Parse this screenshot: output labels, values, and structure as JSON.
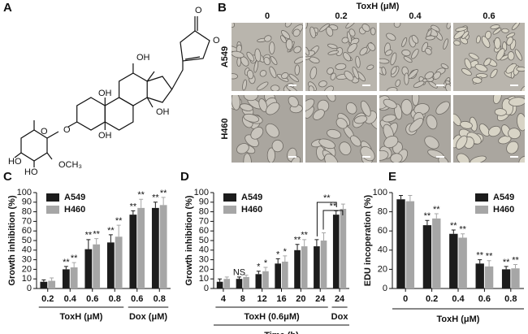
{
  "panel_labels": [
    "A",
    "B",
    "C",
    "D",
    "E"
  ],
  "structure": {
    "labels": [
      "O",
      "O",
      "OH",
      "OH",
      "OH",
      "OH",
      "O",
      "O",
      "HO",
      "HO",
      "OCH₃"
    ]
  },
  "microscopy": {
    "title": "ToxH (μM)",
    "columns": [
      "0",
      "0.2",
      "0.4",
      "0.6"
    ],
    "rows": [
      "A549",
      "H460"
    ]
  },
  "chart_data": [
    {
      "type": "bar",
      "y_label": "Growth inhibition (%)",
      "categories": [
        "0.2",
        "0.4",
        "0.6",
        "0.8",
        "0.6",
        "0.8"
      ],
      "groups": [
        {
          "label": "ToxH (μM)",
          "first": 0,
          "last": 3
        },
        {
          "label": "Dox (μM)",
          "first": 4,
          "last": 5
        }
      ],
      "series": [
        {
          "name": "A549",
          "color": "#1c1c1c",
          "values": [
            7,
            20,
            41,
            48,
            77,
            84
          ],
          "errors": [
            2,
            3,
            10,
            8,
            4,
            6
          ],
          "significance": [
            null,
            "**",
            "**",
            "**",
            "**",
            "**"
          ]
        },
        {
          "name": "H460",
          "color": "#a6a6a6",
          "values": [
            8,
            22,
            46,
            54,
            84,
            87
          ],
          "errors": [
            3,
            5,
            6,
            12,
            9,
            8
          ],
          "significance": [
            null,
            "**",
            "**",
            "**",
            "**",
            "**"
          ]
        }
      ],
      "ylim": [
        0,
        100
      ],
      "yticks": [
        0,
        10,
        20,
        30,
        40,
        50,
        60,
        70,
        80,
        90,
        100
      ],
      "legend": "upper left"
    },
    {
      "type": "bar",
      "y_label": "Growth inhibition (%)",
      "x_label": "Time (h)",
      "categories": [
        "4",
        "8",
        "12",
        "16",
        "20",
        "24",
        "24"
      ],
      "groups": [
        {
          "label": "ToxH (0.6μM)",
          "first": 0,
          "last": 5
        },
        {
          "label": "Dox",
          "first": 6,
          "last": 6
        }
      ],
      "series": [
        {
          "name": "A549",
          "color": "#1c1c1c",
          "values": [
            7,
            10,
            15,
            26,
            40,
            44,
            77
          ],
          "errors": [
            3,
            2,
            3,
            5,
            6,
            7,
            4
          ],
          "significance": [
            null,
            "NS",
            "*",
            "*",
            "**",
            null,
            null
          ]
        },
        {
          "name": "H460",
          "color": "#a6a6a6",
          "values": [
            10,
            12,
            18,
            28,
            44,
            50,
            83
          ],
          "errors": [
            2,
            2,
            4,
            6,
            7,
            8,
            5
          ],
          "significance": [
            null,
            null,
            "*",
            "*",
            "**",
            null,
            null
          ]
        }
      ],
      "bracket_labels": [
        "**",
        "**"
      ],
      "ylim": [
        0,
        100
      ],
      "yticks": [
        0,
        10,
        20,
        30,
        40,
        50,
        60,
        70,
        80,
        90,
        100
      ],
      "legend": "upper left"
    },
    {
      "type": "bar",
      "y_label": "EDU incoperation (%)",
      "x_label": "ToxH (μM)",
      "categories": [
        "0",
        "0.2",
        "0.4",
        "0.6",
        "0.8"
      ],
      "series": [
        {
          "name": "A549",
          "color": "#1c1c1c",
          "values": [
            93,
            66,
            57,
            26,
            20
          ],
          "errors": [
            4,
            5,
            4,
            4,
            3
          ],
          "significance": [
            null,
            "**",
            "**",
            "**",
            "**"
          ]
        },
        {
          "name": "H460",
          "color": "#a6a6a6",
          "values": [
            91,
            73,
            53,
            23,
            21
          ],
          "errors": [
            6,
            5,
            4,
            6,
            4
          ],
          "significance": [
            null,
            "**",
            "**",
            "**",
            "**"
          ]
        }
      ],
      "ylim": [
        0,
        100
      ],
      "yticks": [
        0,
        20,
        40,
        60,
        80,
        100
      ],
      "legend": "upper right"
    }
  ]
}
